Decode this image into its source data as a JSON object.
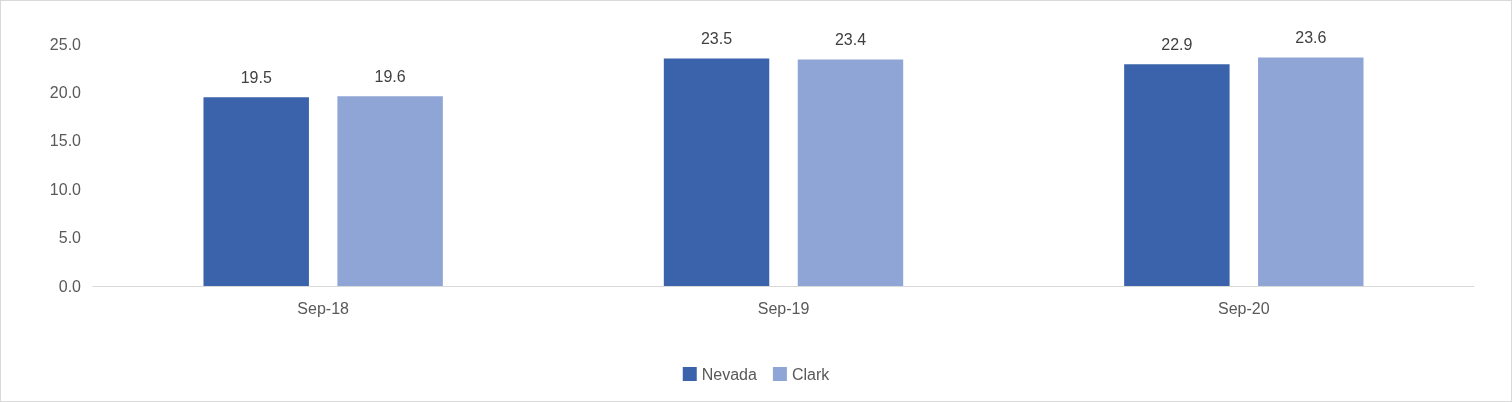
{
  "chart_data": {
    "type": "bar",
    "categories": [
      "Sep-18",
      "Sep-19",
      "Sep-20"
    ],
    "series": [
      {
        "name": "Nevada",
        "color": "#3a63ab",
        "values": [
          19.5,
          23.5,
          22.9
        ]
      },
      {
        "name": "Clark",
        "color": "#8fa5d6",
        "values": [
          19.6,
          23.4,
          23.6
        ]
      }
    ],
    "ylim": [
      0,
      25
    ],
    "yticks": [
      {
        "value": 0,
        "label": "0.0"
      },
      {
        "value": 5,
        "label": "5.0"
      },
      {
        "value": 10,
        "label": "10.0"
      },
      {
        "value": 15,
        "label": "15.0"
      },
      {
        "value": 20,
        "label": "20.0"
      },
      {
        "value": 25,
        "label": "25.0"
      }
    ],
    "grid": false,
    "legend": "bottom",
    "data_labels": true
  }
}
